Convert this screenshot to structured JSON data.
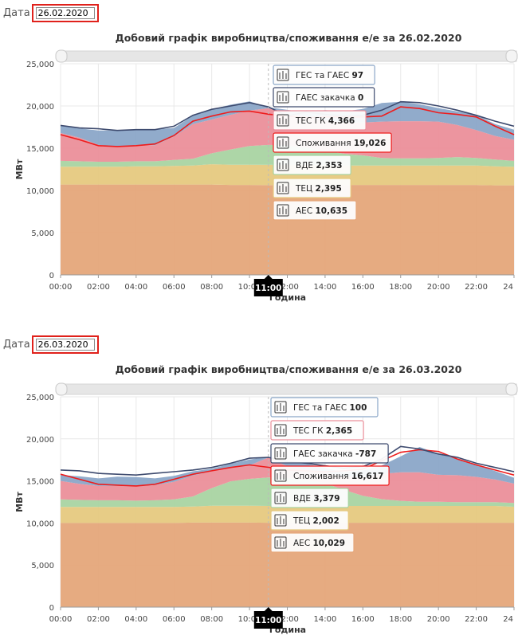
{
  "date_label": "Дата",
  "charts": [
    {
      "date_value": "26.02.2020",
      "title": "Добовий графік виробництва/споживання е/е за 26.02.2020"
    },
    {
      "date_value": "26.03.2020",
      "title": "Добовий графік виробництва/споживання е/е за 26.03.2020"
    }
  ],
  "legend": [
    {
      "label": "АЕС",
      "color": "#e5a67a"
    },
    {
      "label": "ТЕЦ",
      "color": "#e6c97f"
    },
    {
      "label": "ВДЕ",
      "color": "#a9d4a2"
    },
    {
      "label": "ТЕС ГК",
      "color": "#eb8f9a"
    },
    {
      "label": "ГЕС та ГАЕС",
      "color": "#8ba7c8"
    },
    {
      "label": "Споживання",
      "color": "#ee1c1c"
    },
    {
      "label": "ГАЕС закачка",
      "color": "#3d4a6e"
    }
  ],
  "chart_data": [
    {
      "type": "area",
      "title": "Добовий графік виробництва/споживання е/е за 26.02.2020",
      "xlabel": "Година",
      "ylabel": "МВт",
      "ylim": [
        0,
        25000
      ],
      "y_ticks": [
        "0",
        "5,000",
        "10,000",
        "15,000",
        "20,000",
        "25,000"
      ],
      "x_ticks": [
        "00:00",
        "02:00",
        "04:00",
        "06:00",
        "08:00",
        "10:00",
        "12:00",
        "14:00",
        "16:00",
        "18:00",
        "20:00",
        "22:00",
        "24"
      ],
      "x": [
        0,
        1,
        2,
        3,
        4,
        5,
        6,
        7,
        8,
        9,
        10,
        11,
        12,
        13,
        14,
        15,
        16,
        17,
        18,
        19,
        20,
        21,
        22,
        23,
        24
      ],
      "stack": [
        {
          "name": "АЕС",
          "values": [
            10700,
            10700,
            10700,
            10700,
            10700,
            10700,
            10700,
            10700,
            10700,
            10650,
            10650,
            10635,
            10635,
            10650,
            10650,
            10650,
            10650,
            10650,
            10650,
            10650,
            10650,
            10650,
            10650,
            10600,
            10600
          ]
        },
        {
          "name": "ТЕЦ",
          "values": [
            2100,
            2100,
            2100,
            2100,
            2150,
            2150,
            2200,
            2250,
            2400,
            2400,
            2400,
            2395,
            2400,
            2400,
            2350,
            2300,
            2300,
            2300,
            2300,
            2300,
            2300,
            2300,
            2300,
            2250,
            2200
          ]
        },
        {
          "name": "ВДЕ",
          "values": [
            700,
            650,
            600,
            600,
            600,
            600,
            700,
            800,
            1300,
            1800,
            2200,
            2353,
            2300,
            2000,
            1700,
            1400,
            1200,
            900,
            850,
            850,
            900,
            1000,
            900,
            800,
            700
          ]
        },
        {
          "name": "ТЕС ГК",
          "values": [
            3300,
            2800,
            2000,
            1800,
            1900,
            1900,
            2800,
            4100,
            4000,
            4100,
            4200,
            4366,
            3700,
            3700,
            3600,
            3700,
            3900,
            4300,
            4400,
            4400,
            4300,
            3800,
            3300,
            2800,
            2500
          ]
        },
        {
          "name": "ГЕС та ГАЕС",
          "values": [
            850,
            1100,
            1700,
            1900,
            1800,
            1900,
            1000,
            1000,
            1200,
            1200,
            1100,
            97,
            500,
            500,
            1200,
            1300,
            1600,
            2200,
            2300,
            2000,
            1600,
            1600,
            1800,
            1400,
            1200
          ]
        }
      ],
      "lines": [
        {
          "name": "Споживання",
          "values": [
            16600,
            16000,
            15300,
            15200,
            15300,
            15500,
            16500,
            18200,
            18800,
            19300,
            19400,
            19026,
            18800,
            18600,
            18700,
            18700,
            18700,
            18800,
            19900,
            19700,
            19200,
            19000,
            18700,
            17600,
            16600
          ]
        },
        {
          "name": "ГАЕС закачка",
          "values": [
            17700,
            17400,
            17300,
            17100,
            17200,
            17200,
            17600,
            18900,
            19600,
            20000,
            20400,
            19900,
            18800,
            19300,
            19000,
            18800,
            18900,
            19500,
            20500,
            20400,
            20000,
            19500,
            18900,
            18200,
            17600
          ]
        }
      ],
      "tooltip_hour": "11:00",
      "tooltip": [
        {
          "label": "ГЕС та ГАЕС",
          "value": "97",
          "icon": "hydro-icon"
        },
        {
          "label": "ГАЕС закачка",
          "value": "0",
          "icon": "pump-icon"
        },
        {
          "label": "ТЕС ГК",
          "value": "4,366",
          "icon": "thermal-plant-icon"
        },
        {
          "label": "Споживання",
          "value": "19,026",
          "icon": "plug-icon"
        },
        {
          "label": "ВДЕ",
          "value": "2,353",
          "icon": "wind-turbine-icon"
        },
        {
          "label": "ТЕЦ",
          "value": "2,395",
          "icon": "chp-plant-icon"
        },
        {
          "label": "АЕС",
          "value": "10,635",
          "icon": "nuclear-plant-icon"
        }
      ]
    },
    {
      "type": "area",
      "title": "Добовий графік виробництва/споживання е/е за 26.03.2020",
      "xlabel": "Година",
      "ylabel": "МВт",
      "ylim": [
        0,
        25000
      ],
      "y_ticks": [
        "0",
        "5,000",
        "10,000",
        "15,000",
        "20,000",
        "25,000"
      ],
      "x_ticks": [
        "00:00",
        "02:00",
        "04:00",
        "06:00",
        "08:00",
        "10:00",
        "12:00",
        "14:00",
        "16:00",
        "18:00",
        "20:00",
        "22:00",
        "24"
      ],
      "x": [
        0,
        1,
        2,
        3,
        4,
        5,
        6,
        7,
        8,
        9,
        10,
        11,
        12,
        13,
        14,
        15,
        16,
        17,
        18,
        19,
        20,
        21,
        22,
        23,
        24
      ],
      "stack": [
        {
          "name": "АЕС",
          "values": [
            10000,
            10000,
            10000,
            10000,
            10000,
            10000,
            10000,
            10050,
            10050,
            10050,
            10050,
            10029,
            10030,
            10030,
            10030,
            10030,
            10030,
            10030,
            10030,
            10030,
            10030,
            10030,
            10030,
            10030,
            10030
          ]
        },
        {
          "name": "ТЕЦ",
          "values": [
            1900,
            1900,
            1900,
            1900,
            1900,
            1900,
            1900,
            1900,
            2000,
            2000,
            2000,
            2002,
            2000,
            2000,
            2000,
            2000,
            2000,
            2000,
            2000,
            2000,
            2000,
            2000,
            2000,
            2000,
            1900
          ]
        },
        {
          "name": "ВДЕ",
          "values": [
            900,
            850,
            800,
            800,
            750,
            800,
            900,
            1200,
            2100,
            2900,
            3200,
            3379,
            3300,
            3100,
            2700,
            1900,
            1200,
            800,
            600,
            500,
            500,
            450,
            450,
            450,
            450
          ]
        },
        {
          "name": "ТЕС ГК",
          "values": [
            2200,
            1900,
            1700,
            1700,
            1700,
            1800,
            2100,
            2500,
            2000,
            1700,
            1600,
            2365,
            1400,
            1200,
            1300,
            1600,
            2200,
            3000,
            3400,
            3500,
            3200,
            3200,
            3000,
            2700,
            2300
          ]
        },
        {
          "name": "ГЕС та ГАЕС",
          "values": [
            700,
            900,
            900,
            1100,
            1100,
            800,
            700,
            500,
            300,
            400,
            700,
            100,
            500,
            700,
            500,
            500,
            800,
            1000,
            1900,
            3000,
            2500,
            2000,
            1500,
            1000,
            700
          ]
        }
      ],
      "lines": [
        {
          "name": "Споживання",
          "values": [
            15800,
            15200,
            14600,
            14500,
            14400,
            14600,
            15200,
            15800,
            16200,
            16600,
            16900,
            16617,
            16300,
            16200,
            16100,
            16200,
            16400,
            17400,
            18400,
            18700,
            18500,
            17600,
            16900,
            16300,
            15700
          ]
        },
        {
          "name": "ГАЕС закачка",
          "values": [
            16300,
            16200,
            15900,
            15800,
            15700,
            15900,
            16100,
            16300,
            16600,
            17100,
            17700,
            17800,
            17300,
            17100,
            16800,
            16500,
            16700,
            17600,
            19100,
            18800,
            18200,
            17800,
            17100,
            16600,
            16100
          ]
        }
      ],
      "tooltip_hour": "11:00",
      "tooltip": [
        {
          "label": "ГЕС та ГАЕС",
          "value": "100",
          "icon": "hydro-icon"
        },
        {
          "label": "ТЕС ГК",
          "value": "2,365",
          "icon": "thermal-plant-icon"
        },
        {
          "label": "ГАЕС закачка",
          "value": "-787",
          "icon": "pump-icon"
        },
        {
          "label": "Споживання",
          "value": "16,617",
          "icon": "plug-icon"
        },
        {
          "label": "ВДЕ",
          "value": "3,379",
          "icon": "wind-turbine-icon"
        },
        {
          "label": "ТЕЦ",
          "value": "2,002",
          "icon": "chp-plant-icon"
        },
        {
          "label": "АЕС",
          "value": "10,029",
          "icon": "nuclear-plant-icon"
        }
      ]
    }
  ]
}
